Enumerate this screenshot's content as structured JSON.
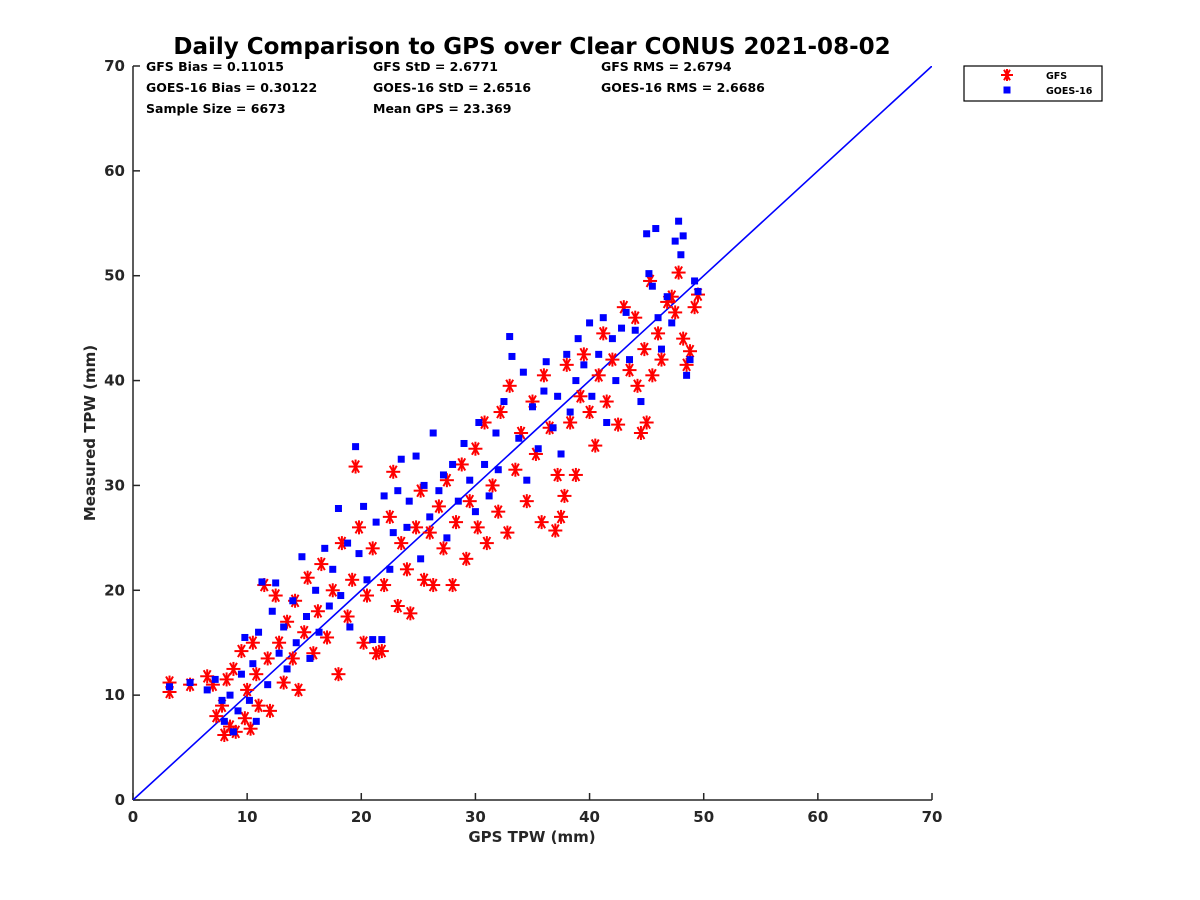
{
  "chart_data": {
    "type": "scatter",
    "title": "Daily Comparison to GPS over Clear CONUS 2021-08-02",
    "xlabel": "GPS TPW (mm)",
    "ylabel": "Measured TPW (mm)",
    "xlim": [
      0,
      70
    ],
    "ylim": [
      0,
      70
    ],
    "xticks": [
      "0",
      "10",
      "20",
      "30",
      "40",
      "50",
      "60",
      "70"
    ],
    "yticks": [
      "0",
      "10",
      "20",
      "30",
      "40",
      "50",
      "60",
      "70"
    ],
    "legend_position": "outside-top-right",
    "stats": [
      "GFS Bias = 0.11015",
      "GFS StD = 2.6771",
      "GFS RMS = 2.6794",
      "GOES-16 Bias = 0.30122",
      "GOES-16 StD = 2.6516",
      "GOES-16 RMS = 2.6686",
      "Sample Size = 6673",
      "Mean GPS = 23.369"
    ],
    "reference_line": {
      "name": "1:1 line",
      "x": [
        0,
        70
      ],
      "y": [
        0,
        70
      ],
      "color": "#0000ff"
    },
    "series": [
      {
        "name": "GFS",
        "marker": "asterisk",
        "color": "#ff0000",
        "points": [
          [
            3.2,
            11.2
          ],
          [
            3.2,
            10.3
          ],
          [
            5.0,
            11.0
          ],
          [
            6.5,
            11.8
          ],
          [
            7.0,
            11.0
          ],
          [
            7.3,
            8.0
          ],
          [
            7.8,
            9.0
          ],
          [
            8.0,
            6.2
          ],
          [
            8.2,
            11.5
          ],
          [
            8.5,
            7.0
          ],
          [
            8.8,
            12.5
          ],
          [
            9.0,
            6.5
          ],
          [
            9.5,
            14.2
          ],
          [
            9.8,
            7.8
          ],
          [
            10.0,
            10.5
          ],
          [
            10.3,
            6.8
          ],
          [
            10.5,
            15.0
          ],
          [
            10.8,
            12.0
          ],
          [
            11.0,
            9.0
          ],
          [
            11.5,
            20.5
          ],
          [
            11.8,
            13.5
          ],
          [
            12.0,
            8.5
          ],
          [
            12.5,
            19.5
          ],
          [
            12.8,
            15.0
          ],
          [
            13.2,
            11.2
          ],
          [
            13.5,
            17.0
          ],
          [
            14.0,
            13.5
          ],
          [
            14.2,
            19.0
          ],
          [
            14.5,
            10.5
          ],
          [
            15.0,
            16.0
          ],
          [
            15.3,
            21.2
          ],
          [
            15.8,
            14.0
          ],
          [
            16.2,
            18.0
          ],
          [
            16.5,
            22.5
          ],
          [
            17.0,
            15.5
          ],
          [
            17.5,
            20.0
          ],
          [
            18.0,
            12.0
          ],
          [
            18.3,
            24.5
          ],
          [
            18.8,
            17.5
          ],
          [
            19.2,
            21.0
          ],
          [
            19.5,
            31.8
          ],
          [
            19.8,
            26.0
          ],
          [
            20.2,
            15.0
          ],
          [
            20.5,
            19.5
          ],
          [
            21.0,
            24.0
          ],
          [
            21.3,
            14.0
          ],
          [
            21.8,
            14.2
          ],
          [
            22.0,
            20.5
          ],
          [
            22.5,
            27.0
          ],
          [
            22.8,
            31.3
          ],
          [
            23.2,
            18.5
          ],
          [
            23.5,
            24.5
          ],
          [
            24.0,
            22.0
          ],
          [
            24.3,
            17.8
          ],
          [
            24.8,
            26.0
          ],
          [
            25.2,
            29.5
          ],
          [
            25.5,
            21.0
          ],
          [
            26.0,
            25.5
          ],
          [
            26.3,
            20.5
          ],
          [
            26.8,
            28.0
          ],
          [
            27.2,
            24.0
          ],
          [
            27.5,
            30.5
          ],
          [
            28.0,
            20.5
          ],
          [
            28.3,
            26.5
          ],
          [
            28.8,
            32.0
          ],
          [
            29.2,
            23.0
          ],
          [
            29.5,
            28.5
          ],
          [
            30.0,
            33.5
          ],
          [
            30.2,
            26.0
          ],
          [
            30.8,
            36.0
          ],
          [
            31.0,
            24.5
          ],
          [
            31.5,
            30.0
          ],
          [
            32.0,
            27.5
          ],
          [
            32.2,
            37.0
          ],
          [
            32.8,
            25.5
          ],
          [
            33.0,
            39.5
          ],
          [
            33.5,
            31.5
          ],
          [
            34.0,
            35.0
          ],
          [
            34.5,
            28.5
          ],
          [
            35.0,
            38.0
          ],
          [
            35.3,
            33.0
          ],
          [
            35.8,
            26.5
          ],
          [
            36.0,
            40.5
          ],
          [
            36.5,
            35.5
          ],
          [
            37.0,
            25.7
          ],
          [
            37.2,
            31.0
          ],
          [
            37.5,
            27.0
          ],
          [
            37.8,
            29.0
          ],
          [
            38.0,
            41.5
          ],
          [
            38.3,
            36.0
          ],
          [
            38.8,
            31.0
          ],
          [
            39.2,
            38.5
          ],
          [
            39.5,
            42.5
          ],
          [
            40.0,
            37.0
          ],
          [
            40.5,
            33.8
          ],
          [
            40.8,
            40.5
          ],
          [
            41.2,
            44.5
          ],
          [
            41.5,
            38.0
          ],
          [
            42.0,
            42.0
          ],
          [
            42.5,
            35.8
          ],
          [
            43.0,
            47.0
          ],
          [
            43.5,
            41.0
          ],
          [
            44.0,
            46.0
          ],
          [
            44.2,
            39.5
          ],
          [
            44.5,
            35.0
          ],
          [
            44.8,
            43.0
          ],
          [
            45.0,
            36.0
          ],
          [
            45.3,
            49.5
          ],
          [
            45.5,
            40.5
          ],
          [
            46.0,
            44.5
          ],
          [
            46.3,
            42.0
          ],
          [
            46.8,
            47.5
          ],
          [
            47.2,
            48.0
          ],
          [
            47.5,
            46.5
          ],
          [
            47.8,
            50.3
          ],
          [
            48.2,
            44.0
          ],
          [
            48.5,
            41.5
          ],
          [
            48.8,
            42.8
          ],
          [
            49.2,
            47.0
          ],
          [
            49.5,
            48.2
          ]
        ]
      },
      {
        "name": "GOES-16",
        "marker": "square",
        "color": "#0000ff",
        "points": [
          [
            3.2,
            10.8
          ],
          [
            5.0,
            11.2
          ],
          [
            6.5,
            10.5
          ],
          [
            7.2,
            11.5
          ],
          [
            7.8,
            9.5
          ],
          [
            8.0,
            7.5
          ],
          [
            8.5,
            10.0
          ],
          [
            8.8,
            6.5
          ],
          [
            9.2,
            8.5
          ],
          [
            9.5,
            12.0
          ],
          [
            9.8,
            15.5
          ],
          [
            10.2,
            9.5
          ],
          [
            10.5,
            13.0
          ],
          [
            10.8,
            7.5
          ],
          [
            11.0,
            16.0
          ],
          [
            11.3,
            20.8
          ],
          [
            11.8,
            11.0
          ],
          [
            12.2,
            18.0
          ],
          [
            12.5,
            20.7
          ],
          [
            12.8,
            14.0
          ],
          [
            13.2,
            16.5
          ],
          [
            13.5,
            12.5
          ],
          [
            14.0,
            19.0
          ],
          [
            14.3,
            15.0
          ],
          [
            14.8,
            23.2
          ],
          [
            15.2,
            17.5
          ],
          [
            15.5,
            13.5
          ],
          [
            16.0,
            20.0
          ],
          [
            16.3,
            16.0
          ],
          [
            16.8,
            24.0
          ],
          [
            17.2,
            18.5
          ],
          [
            17.5,
            22.0
          ],
          [
            18.0,
            27.8
          ],
          [
            18.2,
            19.5
          ],
          [
            18.8,
            24.5
          ],
          [
            19.0,
            16.5
          ],
          [
            19.5,
            33.7
          ],
          [
            19.8,
            23.5
          ],
          [
            20.2,
            28.0
          ],
          [
            20.5,
            21.0
          ],
          [
            21.0,
            15.3
          ],
          [
            21.3,
            26.5
          ],
          [
            21.8,
            15.3
          ],
          [
            22.0,
            29.0
          ],
          [
            22.5,
            22.0
          ],
          [
            22.8,
            25.5
          ],
          [
            23.2,
            29.5
          ],
          [
            23.5,
            32.5
          ],
          [
            24.0,
            26.0
          ],
          [
            24.2,
            28.5
          ],
          [
            24.8,
            32.8
          ],
          [
            25.2,
            23.0
          ],
          [
            25.5,
            30.0
          ],
          [
            26.0,
            27.0
          ],
          [
            26.3,
            35.0
          ],
          [
            26.8,
            29.5
          ],
          [
            27.2,
            31.0
          ],
          [
            27.5,
            25.0
          ],
          [
            28.0,
            32.0
          ],
          [
            28.5,
            28.5
          ],
          [
            29.0,
            34.0
          ],
          [
            29.5,
            30.5
          ],
          [
            30.0,
            27.5
          ],
          [
            30.3,
            36.0
          ],
          [
            30.8,
            32.0
          ],
          [
            31.2,
            29.0
          ],
          [
            31.8,
            35.0
          ],
          [
            32.0,
            31.5
          ],
          [
            32.5,
            38.0
          ],
          [
            33.0,
            44.2
          ],
          [
            33.2,
            42.3
          ],
          [
            33.8,
            34.5
          ],
          [
            34.2,
            40.8
          ],
          [
            34.5,
            30.5
          ],
          [
            35.0,
            37.5
          ],
          [
            35.5,
            33.5
          ],
          [
            36.0,
            39.0
          ],
          [
            36.2,
            41.8
          ],
          [
            36.8,
            35.5
          ],
          [
            37.2,
            38.5
          ],
          [
            37.5,
            33.0
          ],
          [
            38.0,
            42.5
          ],
          [
            38.3,
            37.0
          ],
          [
            38.8,
            40.0
          ],
          [
            39.0,
            44.0
          ],
          [
            39.5,
            41.5
          ],
          [
            40.0,
            45.5
          ],
          [
            40.2,
            38.5
          ],
          [
            40.8,
            42.5
          ],
          [
            41.2,
            46.0
          ],
          [
            41.5,
            36.0
          ],
          [
            42.0,
            44.0
          ],
          [
            42.3,
            40.0
          ],
          [
            42.8,
            45.0
          ],
          [
            43.2,
            46.5
          ],
          [
            43.5,
            42.0
          ],
          [
            44.0,
            44.8
          ],
          [
            44.5,
            38.0
          ],
          [
            45.0,
            54.0
          ],
          [
            45.2,
            50.2
          ],
          [
            45.5,
            49.0
          ],
          [
            45.8,
            54.5
          ],
          [
            46.0,
            46.0
          ],
          [
            46.3,
            43.0
          ],
          [
            46.8,
            48.0
          ],
          [
            47.2,
            45.5
          ],
          [
            47.5,
            53.3
          ],
          [
            47.8,
            55.2
          ],
          [
            48.0,
            52.0
          ],
          [
            48.2,
            53.8
          ],
          [
            48.5,
            40.5
          ],
          [
            48.8,
            42.0
          ],
          [
            49.2,
            49.5
          ],
          [
            49.5,
            48.5
          ]
        ]
      }
    ]
  }
}
